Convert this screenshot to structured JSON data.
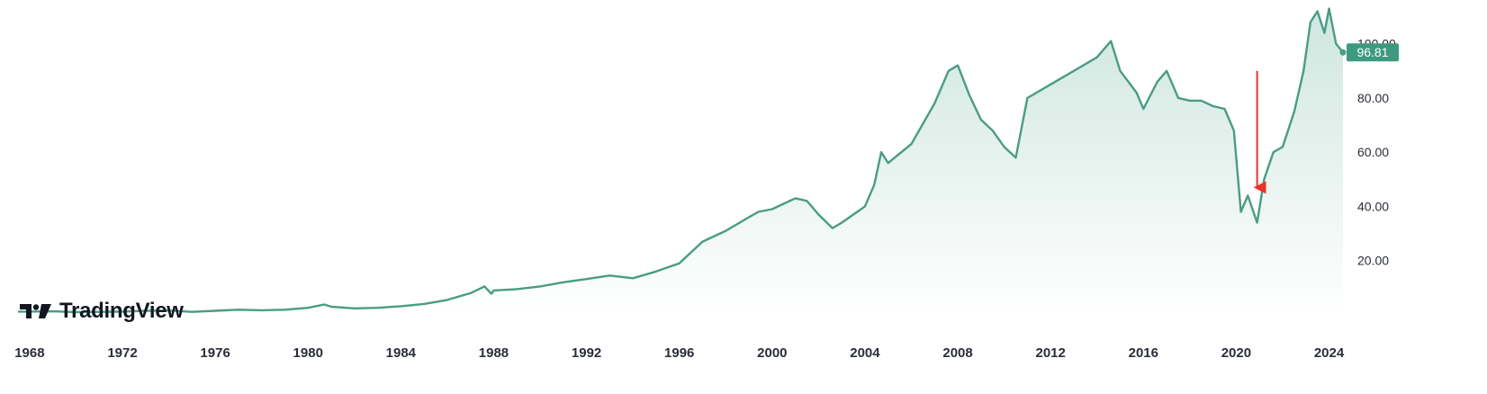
{
  "brand": {
    "name": "TradingView",
    "logo_icon": "tradingview-logo-icon"
  },
  "colors": {
    "line": "#4a9c85",
    "fill_top": "#cfe6df",
    "fill_bottom": "#ffffff",
    "badge": "#3d9a7e",
    "arrow": "#e8332a"
  },
  "chart_data": {
    "type": "area",
    "xlabel": "",
    "ylabel": "",
    "xlim": [
      1967.5,
      2024.6
    ],
    "ylim": [
      0,
      110
    ],
    "x_ticks": [
      "1968",
      "1972",
      "1976",
      "1980",
      "1984",
      "1988",
      "1992",
      "1996",
      "2000",
      "2004",
      "2008",
      "2012",
      "2016",
      "2020",
      "2024"
    ],
    "y_ticks": [
      "20.00",
      "40.00",
      "60.00",
      "80.00",
      "100.00"
    ],
    "grid": false,
    "y_axis_side": "right",
    "last_value": "96.81",
    "annotation": {
      "type": "arrow",
      "color": "red",
      "from": [
        2020.9,
        90
      ],
      "to": [
        2020.9,
        43
      ]
    },
    "x": [
      1967.5,
      1968,
      1969,
      1970,
      1971,
      1972,
      1973,
      1974,
      1975,
      1976,
      1977,
      1978,
      1979,
      1980,
      1980.7,
      1981,
      1982,
      1983,
      1984,
      1985,
      1986,
      1987,
      1987.6,
      1987.9,
      1988,
      1989,
      1990,
      1991,
      1992,
      1993,
      1994,
      1995,
      1996,
      1997,
      1998,
      1999,
      1999.4,
      2000,
      2001,
      2001.5,
      2002,
      2002.6,
      2003,
      2004,
      2004.4,
      2004.7,
      2005,
      2006,
      2007,
      2007.6,
      2008,
      2008.5,
      2009,
      2009.5,
      2010,
      2010.5,
      2011,
      2012,
      2013,
      2014,
      2014.6,
      2015,
      2015.7,
      2016,
      2016.6,
      2017,
      2017.5,
      2018,
      2018.5,
      2019,
      2019.5,
      2019.9,
      2020.2,
      2020.5,
      2020.9,
      2021.2,
      2021.6,
      2022,
      2022.5,
      2022.9,
      2023.2,
      2023.5,
      2023.8,
      2024,
      2024.3,
      2024.6
    ],
    "values": [
      1.2,
      1.2,
      1.3,
      1.0,
      1.1,
      1.2,
      1.5,
      1.6,
      1.1,
      1.5,
      1.9,
      1.7,
      1.9,
      2.6,
      3.8,
      3.0,
      2.4,
      2.6,
      3.2,
      4.0,
      5.5,
      8.0,
      10.5,
      7.8,
      9.0,
      9.5,
      10.5,
      12.0,
      13.2,
      14.5,
      13.5,
      16.0,
      19.0,
      27.0,
      31.0,
      36.0,
      38.0,
      39.0,
      43.0,
      42.0,
      37.0,
      32.0,
      34.0,
      40.0,
      48.0,
      60.0,
      56.0,
      63.0,
      78.0,
      90.0,
      92.0,
      81.0,
      72.0,
      68.0,
      62.0,
      58.0,
      80.0,
      85.0,
      90.0,
      95.0,
      101.0,
      90.0,
      82.0,
      76.0,
      86.0,
      90.0,
      80.0,
      79.0,
      79.0,
      77.0,
      76.0,
      68.0,
      38.0,
      44.0,
      34.0,
      50.0,
      60.0,
      62.0,
      75.0,
      90.0,
      108.0,
      112.0,
      104.0,
      113.0,
      100.0,
      96.81
    ]
  }
}
